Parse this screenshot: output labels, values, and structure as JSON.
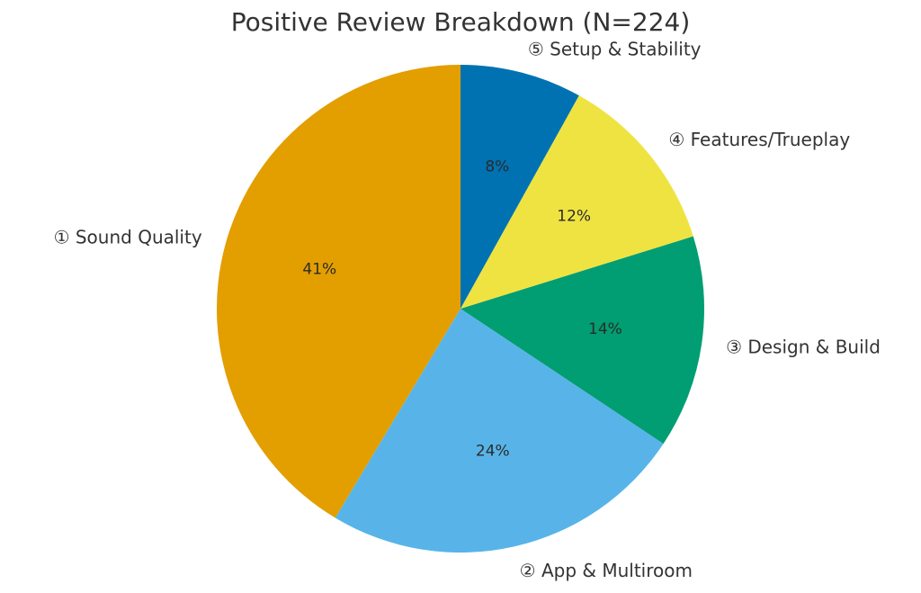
{
  "chart_data": {
    "type": "pie",
    "title": "Positive Review Breakdown (N=224)",
    "start": "12 o'clock",
    "direction": "counterclockwise",
    "slices": [
      {
        "label": "① Sound Quality",
        "value": 41,
        "value_label": "41%",
        "color": "#E39E00"
      },
      {
        "label": "② App & Multiroom",
        "value": 24,
        "value_label": "24%",
        "color": "#58B4E8"
      },
      {
        "label": "③ Design & Build",
        "value": 14,
        "value_label": "14%",
        "color": "#009E72"
      },
      {
        "label": "④ Features/Trueplay",
        "value": 12,
        "value_label": "12%",
        "color": "#EFE342"
      },
      {
        "label": "⑤ Setup & Stability",
        "value": 8,
        "value_label": "8%",
        "color": "#0072B2"
      }
    ]
  }
}
